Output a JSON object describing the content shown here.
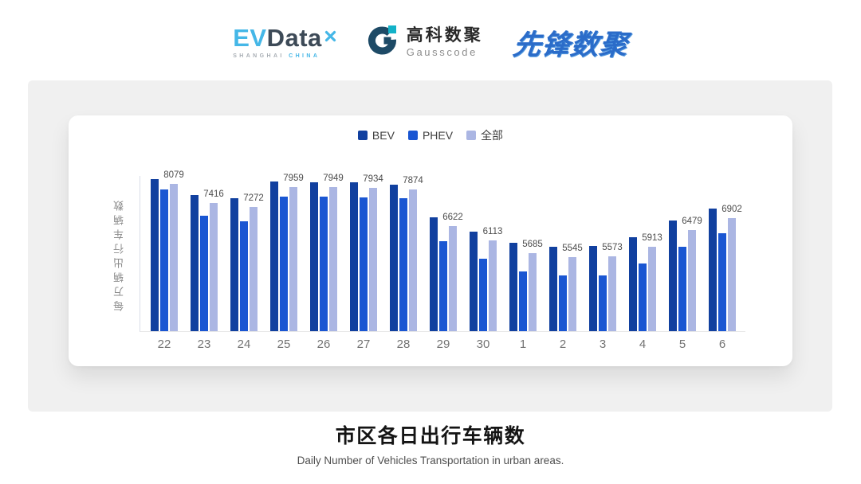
{
  "header": {
    "evdata": {
      "ev": "EV",
      "data": "Data",
      "tagline_left": "SHANGHAI",
      "tagline_right": "CHINA"
    },
    "gausscode": {
      "cn": "高科数聚",
      "en": "Gausscode"
    },
    "pioneer": {
      "text": "先锋数聚"
    }
  },
  "icons": {
    "evdata-x-icon": "✕",
    "gausscode-g-icon": "G-arc-mark"
  },
  "chart_data": {
    "type": "bar",
    "title": "市区各日出行车辆数",
    "subtitle": "Daily Number of Vehicles Transportation in urban areas.",
    "ylabel": "每万辆出行车辆数",
    "xlabel": "",
    "categories": [
      "22",
      "23",
      "24",
      "25",
      "26",
      "27",
      "28",
      "29",
      "30",
      "1",
      "2",
      "3",
      "4",
      "5",
      "6"
    ],
    "series": [
      {
        "name": "BEV",
        "color": "#11409F",
        "estimated": true,
        "values": [
          8224,
          7680,
          7563,
          8161,
          8125,
          8125,
          8044,
          6911,
          6431,
          6051,
          5898,
          5942,
          6232,
          6794,
          7210
        ]
      },
      {
        "name": "PHEV",
        "color": "#1A56D2",
        "estimated": true,
        "values": [
          7862,
          6974,
          6767,
          7637,
          7626,
          7610,
          7563,
          6088,
          5499,
          5056,
          4910,
          4910,
          5336,
          5914,
          6360
        ]
      },
      {
        "name": "全部",
        "color": "#ABB6E3",
        "estimated": false,
        "values": [
          8079,
          7416,
          7272,
          7959,
          7949,
          7934,
          7874,
          6622,
          6113,
          5685,
          5545,
          5573,
          5913,
          6479,
          6902
        ]
      }
    ],
    "value_labels": [
      8079,
      7416,
      7272,
      7959,
      7949,
      7934,
      7874,
      6622,
      6113,
      5685,
      5545,
      5573,
      5913,
      6479,
      6902
    ],
    "labeled_series": "全部",
    "ylim": [
      3000,
      8340
    ],
    "legend": [
      "BEV",
      "PHEV",
      "全部"
    ],
    "legend_position": "top",
    "grid": false,
    "colors": {
      "axis_line": "#d9dee9",
      "baseline": "#e7e7e7",
      "tick_text": "#737373",
      "value_label_text": "#4c4c4c"
    }
  },
  "footer": {
    "title": "市区各日出行车辆数",
    "subtitle": "Daily Number of Vehicles Transportation in urban areas."
  }
}
